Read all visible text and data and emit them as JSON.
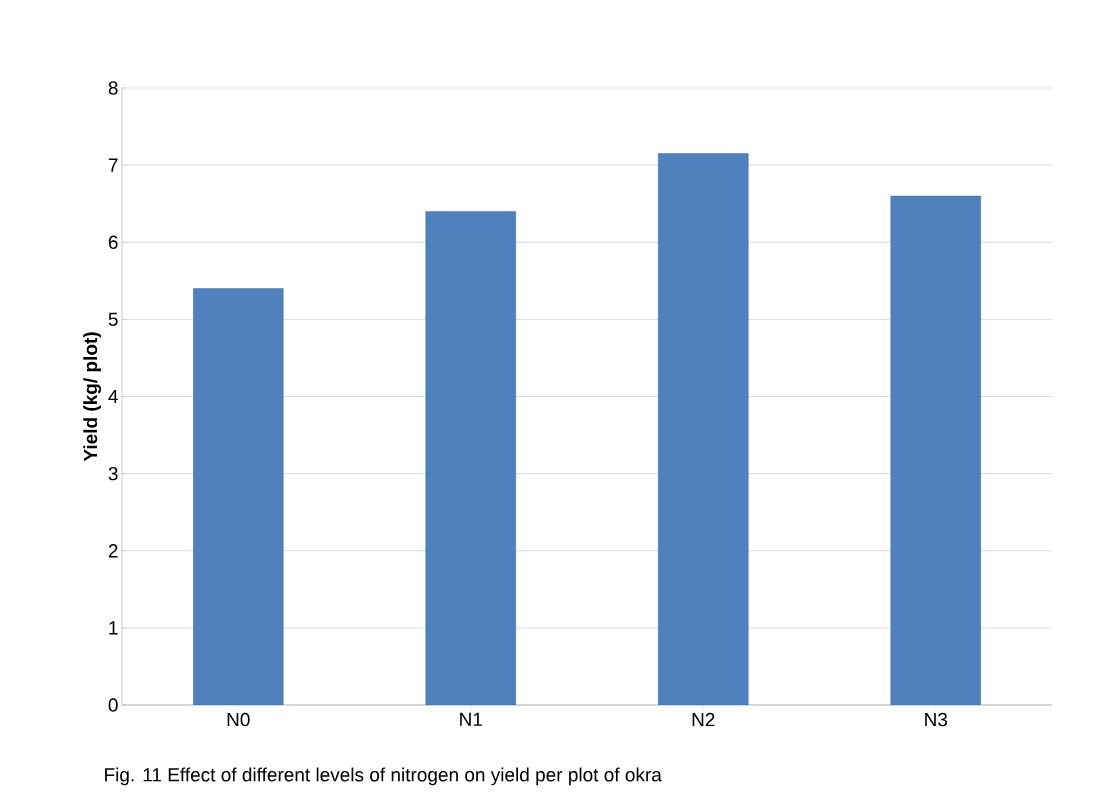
{
  "chart_data": {
    "type": "bar",
    "ylabel": "**Yield (kg/ plot)**",
    "categories": [
      "N0",
      "N1",
      "N2",
      "N3"
    ],
    "values": [
      5.4,
      6.4,
      7.15,
      6.6
    ],
    "color": "#4f81bd",
    "ylim": [
      0,
      8
    ],
    "yticks": [
      0,
      1,
      2,
      3,
      4,
      5,
      6,
      7,
      8
    ],
    "grid": "y",
    "annotations": [
      "Fig. 11 Effect of different levels of nitrogen on yield per plot of okra"
    ]
  }
}
